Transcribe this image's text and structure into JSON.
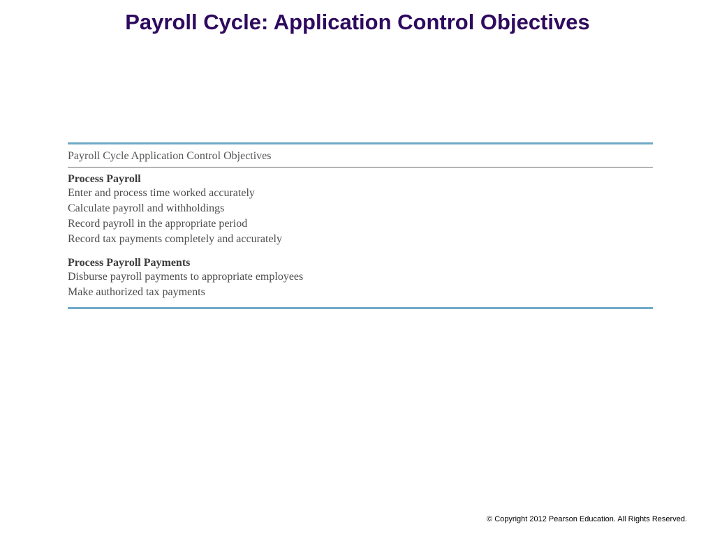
{
  "slide": {
    "title": "Payroll Cycle: Application Control Objectives",
    "title_color": "#2e0a5e",
    "title_fontsize": 31,
    "background_color": "#ffffff"
  },
  "table": {
    "rule_color": "#6fa8c7",
    "divider_color": "#6a6a6a",
    "text_color": "#4c4c4c",
    "header": "Payroll Cycle Application Control Objectives",
    "sections": [
      {
        "title": "Process Payroll",
        "items": [
          "Enter and process time worked accurately",
          "Calculate payroll and withholdings",
          "Record payroll in the appropriate period",
          "Record tax payments completely and accurately"
        ]
      },
      {
        "title": "Process Payroll Payments",
        "items": [
          "Disburse payroll payments to appropriate employees",
          "Make authorized tax payments"
        ]
      }
    ]
  },
  "footer": "© Copyright 2012 Pearson Education. All Rights Reserved."
}
